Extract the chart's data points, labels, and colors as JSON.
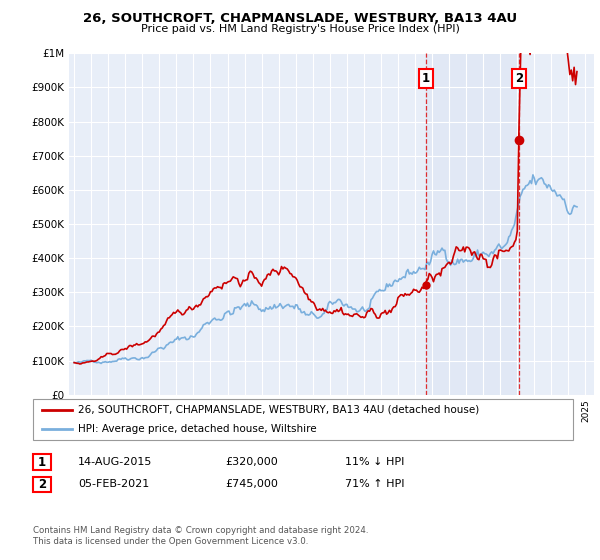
{
  "title": "26, SOUTHCROFT, CHAPMANSLADE, WESTBURY, BA13 4AU",
  "subtitle": "Price paid vs. HM Land Registry's House Price Index (HPI)",
  "legend_line1": "26, SOUTHCROFT, CHAPMANSLADE, WESTBURY, BA13 4AU (detached house)",
  "legend_line2": "HPI: Average price, detached house, Wiltshire",
  "annotation1_label": "1",
  "annotation1_date": "14-AUG-2015",
  "annotation1_price": "£320,000",
  "annotation1_hpi": "11% ↓ HPI",
  "annotation1_year": 2015.62,
  "annotation1_value": 320000,
  "annotation2_label": "2",
  "annotation2_date": "05-FEB-2021",
  "annotation2_price": "£745,000",
  "annotation2_hpi": "71% ↑ HPI",
  "annotation2_year": 2021.1,
  "annotation2_value": 745000,
  "price_color": "#cc0000",
  "hpi_color": "#7aafdd",
  "background_color": "#ffffff",
  "plot_bg_color": "#e8eef8",
  "grid_color": "#ffffff",
  "ylim": [
    0,
    1000000
  ],
  "yticks": [
    0,
    100000,
    200000,
    300000,
    400000,
    500000,
    600000,
    700000,
    800000,
    900000,
    1000000
  ],
  "ytick_labels": [
    "£0",
    "£100K",
    "£200K",
    "£300K",
    "£400K",
    "£500K",
    "£600K",
    "£700K",
    "£800K",
    "£900K",
    "£1M"
  ],
  "copyright": "Contains HM Land Registry data © Crown copyright and database right 2024.\nThis data is licensed under the Open Government Licence v3.0."
}
